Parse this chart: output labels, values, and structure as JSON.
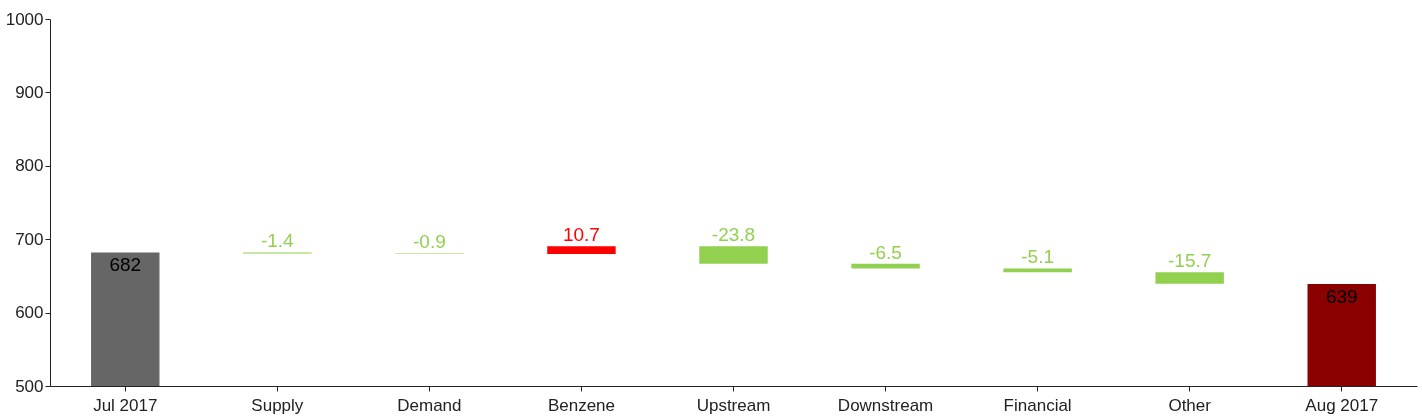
{
  "chart_data": {
    "type": "bar",
    "categories": [
      "Jul 2017",
      "Supply",
      "Demand",
      "Benzene",
      "Upstream",
      "Downstream",
      "Financial",
      "Other",
      "Aug 2017"
    ],
    "values": [
      682,
      -1.4,
      -0.9,
      10.7,
      -23.8,
      -6.5,
      -5.1,
      -15.7,
      639
    ],
    "base": [
      null,
      682,
      680.6,
      679.7,
      690.4,
      666.6,
      660.1,
      655.0,
      null
    ],
    "colors": [
      "#666666",
      "#92d050",
      "#92d050",
      "#ff0000",
      "#92d050",
      "#92d050",
      "#92d050",
      "#92d050",
      "#8b0000"
    ],
    "ylim": [
      500,
      1000
    ],
    "yticks": [
      500,
      600,
      700,
      800,
      900,
      1000
    ],
    "data_labels": true,
    "grid": false,
    "legend": false
  }
}
